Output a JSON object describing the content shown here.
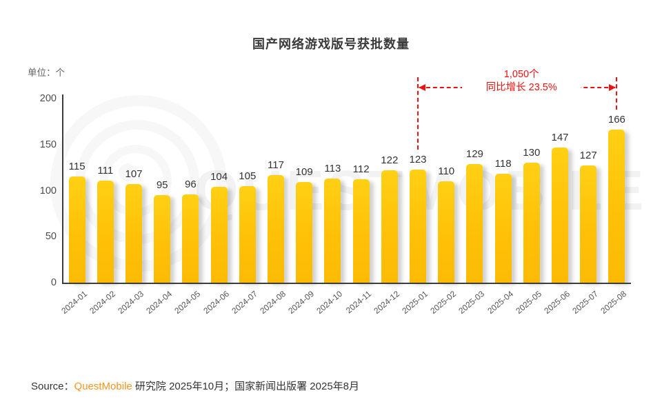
{
  "title": "国产网络游戏版号获批数量",
  "unit_label": "单位：个",
  "colors": {
    "bar": "#FFC107",
    "bar_top": "#FFD015",
    "annotation_red": "#EE1111",
    "brand_orange": "#F7941D",
    "axis": "#3C3C3C"
  },
  "chart_data": {
    "type": "bar",
    "title": "国产网络游戏版号获批数量",
    "xlabel": "",
    "ylabel": "单位：个",
    "ylim": [
      0,
      200
    ],
    "yticks": [
      0,
      50,
      100,
      150,
      200
    ],
    "grid": false,
    "legend": false,
    "categories": [
      "2024-01",
      "2024-02",
      "2024-03",
      "2024-04",
      "2024-05",
      "2024-06",
      "2024-07",
      "2024-08",
      "2024-09",
      "2024-10",
      "2024-11",
      "2024-12",
      "2025-01",
      "2025-02",
      "2025-03",
      "2025-04",
      "2025-05",
      "2025-06",
      "2025-07",
      "2025-08"
    ],
    "values": [
      115,
      111,
      107,
      95,
      96,
      104,
      105,
      117,
      109,
      113,
      112,
      122,
      123,
      110,
      129,
      118,
      130,
      147,
      127,
      166
    ],
    "annotation": {
      "line1": "1,050个",
      "line2": "同比增长 23.5%",
      "from_category": "2025-01",
      "to_category": "2025-08"
    }
  },
  "source": {
    "label": "Source：",
    "brand": "QuestMobile",
    "rest": " 研究院 2025年10月；国家新闻出版署 2025年8月"
  },
  "watermark": {
    "text": "QUESTMOBILE"
  }
}
